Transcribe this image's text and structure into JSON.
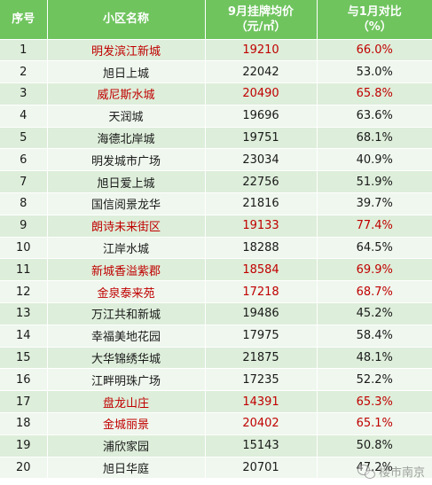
{
  "headers": {
    "col1": "序号",
    "col2": "小区名称",
    "col3_line1": "9月挂牌均价",
    "col3_line2": "（元/㎡）",
    "col4_line1": "与1月对比",
    "col4_line2": "（%）"
  },
  "rows": [
    {
      "no": "1",
      "name": "明发滨江新城",
      "price": "19210",
      "pct": "66.0%",
      "highlight": true
    },
    {
      "no": "2",
      "name": "旭日上城",
      "price": "22042",
      "pct": "53.0%",
      "highlight": false
    },
    {
      "no": "3",
      "name": "威尼斯水城",
      "price": "20490",
      "pct": "65.8%",
      "highlight": true
    },
    {
      "no": "4",
      "name": "天润城",
      "price": "19696",
      "pct": "63.6%",
      "highlight": false
    },
    {
      "no": "5",
      "name": "海德北岸城",
      "price": "19751",
      "pct": "68.1%",
      "highlight": false
    },
    {
      "no": "6",
      "name": "明发城市广场",
      "price": "23034",
      "pct": "40.9%",
      "highlight": false
    },
    {
      "no": "7",
      "name": "旭日爱上城",
      "price": "22756",
      "pct": "51.9%",
      "highlight": false
    },
    {
      "no": "8",
      "name": "国信阅景龙华",
      "price": "21816",
      "pct": "39.7%",
      "highlight": false
    },
    {
      "no": "9",
      "name": "朗诗未来街区",
      "price": "19133",
      "pct": "77.4%",
      "highlight": true
    },
    {
      "no": "10",
      "name": "江岸水城",
      "price": "18288",
      "pct": "64.5%",
      "highlight": false
    },
    {
      "no": "11",
      "name": "新城香溢紫郡",
      "price": "18584",
      "pct": "69.9%",
      "highlight": true
    },
    {
      "no": "12",
      "name": "金泉泰来苑",
      "price": "17218",
      "pct": "68.7%",
      "highlight": true
    },
    {
      "no": "13",
      "name": "万江共和新城",
      "price": "19486",
      "pct": "45.2%",
      "highlight": false
    },
    {
      "no": "14",
      "name": "幸福美地花园",
      "price": "17975",
      "pct": "58.4%",
      "highlight": false
    },
    {
      "no": "15",
      "name": "大华锦绣华城",
      "price": "21875",
      "pct": "48.1%",
      "highlight": false
    },
    {
      "no": "16",
      "name": "江畔明珠广场",
      "price": "17235",
      "pct": "52.2%",
      "highlight": false
    },
    {
      "no": "17",
      "name": "盘龙山庄",
      "price": "14391",
      "pct": "65.3%",
      "highlight": true
    },
    {
      "no": "18",
      "name": "金城丽景",
      "price": "20402",
      "pct": "65.1%",
      "highlight": true
    },
    {
      "no": "19",
      "name": "浦欣家园",
      "price": "15143",
      "pct": "50.8%",
      "highlight": false
    },
    {
      "no": "20",
      "name": "旭日华庭",
      "price": "20701",
      "pct": "47.2%",
      "highlight": false
    }
  ],
  "watermark": {
    "text": "楼市南京",
    "icon": "wechat-icon"
  },
  "colors": {
    "header_bg": "#6fc45e",
    "row_odd": "#ddeeda",
    "row_even": "#eff7ee",
    "highlight_text": "#c00000"
  }
}
